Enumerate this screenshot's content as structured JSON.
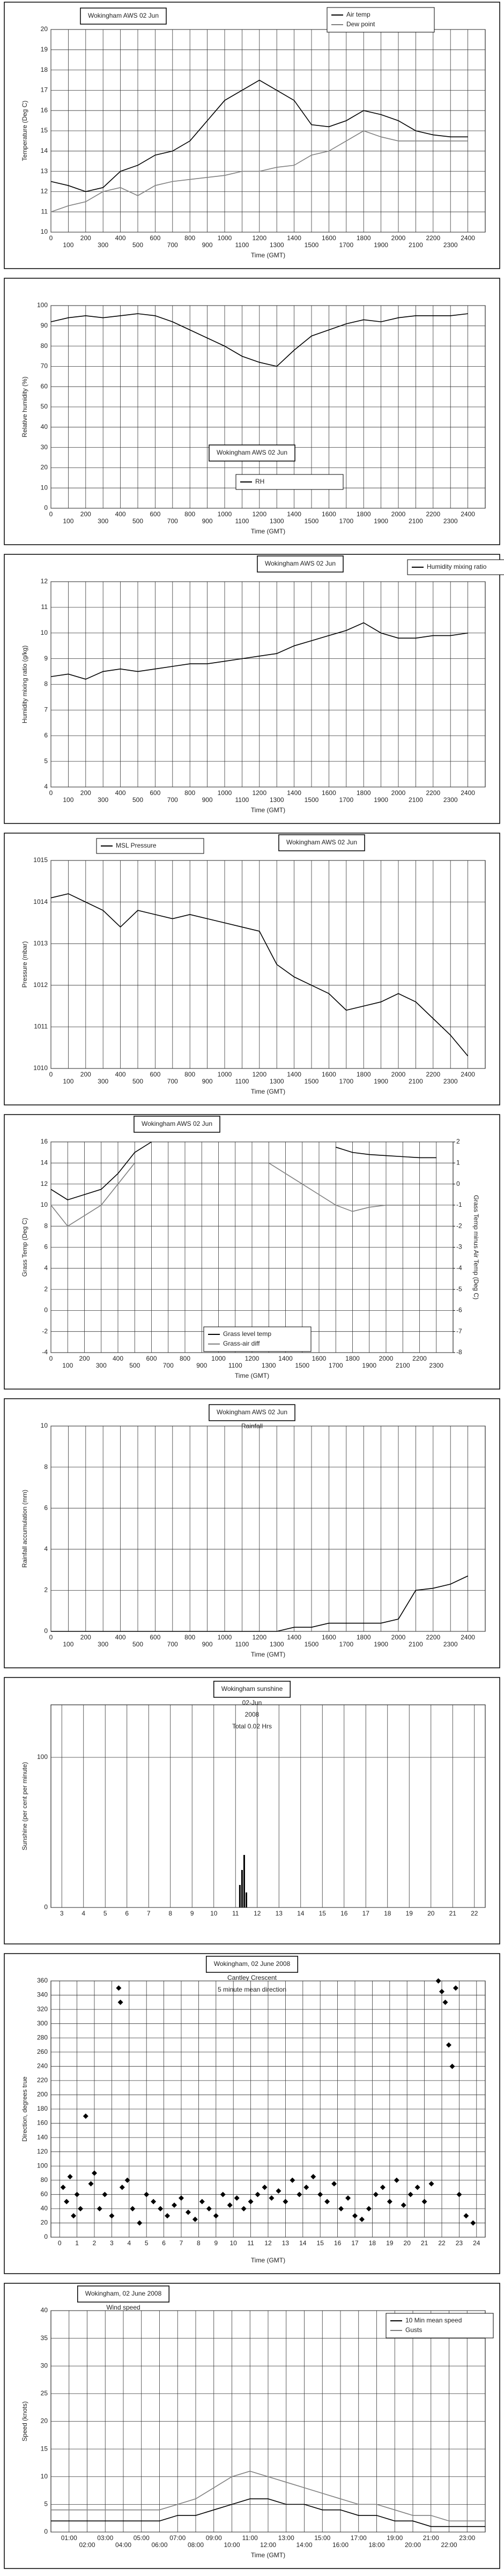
{
  "chart_data": [
    {
      "type": "line",
      "title": "Wokingham AWS 02 Jun",
      "xlabel": "Time (GMT)",
      "ylabel": "Temperature (Deg C)",
      "legend": "upper right",
      "grid": true,
      "x": [
        0,
        100,
        200,
        300,
        400,
        500,
        600,
        700,
        800,
        900,
        1000,
        1100,
        1200,
        1300,
        1400,
        1500,
        1600,
        1700,
        1800,
        1900,
        2000,
        2100,
        2200,
        2300,
        2400
      ],
      "series": [
        {
          "name": "Air temp",
          "color": "#000000",
          "values": [
            12.5,
            12.3,
            12,
            12.2,
            13,
            13.3,
            13.8,
            14,
            14.5,
            15.5,
            16.5,
            17,
            17.5,
            17,
            16.5,
            15.3,
            15.2,
            15.5,
            16,
            15.8,
            15.5,
            15,
            14.8,
            14.7,
            14.7
          ]
        },
        {
          "name": "Dew point",
          "color": "#808080",
          "values": [
            11,
            11.3,
            11.5,
            12,
            12.2,
            11.8,
            12.3,
            12.5,
            12.6,
            12.7,
            12.8,
            13,
            13,
            13.2,
            13.3,
            13.8,
            14,
            14.5,
            15,
            14.7,
            14.5,
            14.5,
            14.5,
            14.5,
            14.5
          ]
        }
      ],
      "xlim": [
        0,
        2500
      ],
      "xticks": [
        0,
        100,
        200,
        300,
        400,
        500,
        600,
        700,
        800,
        900,
        1000,
        1100,
        1200,
        1300,
        1400,
        1500,
        1600,
        1700,
        1800,
        1900,
        2000,
        2100,
        2200,
        2300,
        2400
      ],
      "ylim": [
        10,
        20
      ],
      "yticks": [
        10,
        11,
        12,
        13,
        14,
        15,
        16,
        17,
        18,
        19,
        20
      ]
    },
    {
      "type": "line",
      "title": "Wokingham AWS 02 Jun",
      "xlabel": "Time (GMT)",
      "ylabel": "Relative humidity (%)",
      "legend": "lower center",
      "grid": true,
      "x": [
        0,
        100,
        200,
        300,
        400,
        500,
        600,
        700,
        800,
        900,
        1000,
        1100,
        1200,
        1300,
        1400,
        1500,
        1600,
        1700,
        1800,
        1900,
        2000,
        2100,
        2200,
        2300,
        2400
      ],
      "series": [
        {
          "name": "RH",
          "color": "#000000",
          "values": [
            92,
            94,
            95,
            94,
            95,
            96,
            95,
            92,
            88,
            84,
            80,
            75,
            72,
            70,
            78,
            85,
            88,
            91,
            93,
            92,
            94,
            95,
            95,
            95,
            96
          ]
        }
      ],
      "xlim": [
        0,
        2500
      ],
      "xticks": [
        0,
        100,
        200,
        300,
        400,
        500,
        600,
        700,
        800,
        900,
        1000,
        1100,
        1200,
        1300,
        1400,
        1500,
        1600,
        1700,
        1800,
        1900,
        2000,
        2100,
        2200,
        2300,
        2400
      ],
      "ylim": [
        0,
        100
      ],
      "yticks": [
        0,
        10,
        20,
        30,
        40,
        50,
        60,
        70,
        80,
        90,
        100
      ]
    },
    {
      "type": "line",
      "title": "Wokingham AWS 02 Jun",
      "xlabel": "Time (GMT)",
      "ylabel": "Humidity mixing ratio (g/kg)",
      "legend": "upper right",
      "grid": true,
      "x": [
        0,
        100,
        200,
        300,
        400,
        500,
        600,
        700,
        800,
        900,
        1000,
        1100,
        1200,
        1300,
        1400,
        1500,
        1600,
        1700,
        1800,
        1900,
        2000,
        2100,
        2200,
        2300,
        2400
      ],
      "series": [
        {
          "name": "Humidity mixing ratio",
          "color": "#000000",
          "values": [
            8.3,
            8.4,
            8.2,
            8.5,
            8.6,
            8.5,
            8.6,
            8.7,
            8.8,
            8.8,
            8.9,
            9,
            9.1,
            9.2,
            9.5,
            9.7,
            9.9,
            10.1,
            10.4,
            10,
            9.8,
            9.8,
            9.9,
            9.9,
            10
          ]
        }
      ],
      "xlim": [
        0,
        2500
      ],
      "xticks": [
        0,
        100,
        200,
        300,
        400,
        500,
        600,
        700,
        800,
        900,
        1000,
        1100,
        1200,
        1300,
        1400,
        1500,
        1600,
        1700,
        1800,
        1900,
        2000,
        2100,
        2200,
        2300,
        2400
      ],
      "ylim": [
        4,
        12
      ],
      "yticks": [
        4,
        5,
        6,
        7,
        8,
        9,
        10,
        11,
        12
      ]
    },
    {
      "type": "line",
      "title": "Wokingham AWS 02 Jun",
      "xlabel": "Time (GMT)",
      "ylabel": "Pressure (mbar)",
      "legend": "upper left",
      "grid": true,
      "x": [
        0,
        100,
        200,
        300,
        400,
        500,
        600,
        700,
        800,
        900,
        1000,
        1100,
        1200,
        1300,
        1400,
        1500,
        1600,
        1700,
        1800,
        1900,
        2000,
        2100,
        2200,
        2300,
        2400
      ],
      "series": [
        {
          "name": "MSL Pressure",
          "color": "#000000",
          "values": [
            1014.1,
            1014.2,
            1014,
            1013.8,
            1013.4,
            1013.8,
            1013.7,
            1013.6,
            1013.7,
            1013.6,
            1013.5,
            1013.4,
            1013.3,
            1012.5,
            1012.2,
            1012,
            1011.8,
            1011.4,
            1011.5,
            1011.6,
            1011.8,
            1011.6,
            1011.2,
            1010.8,
            1010.3
          ]
        }
      ],
      "xlim": [
        0,
        2500
      ],
      "xticks": [
        0,
        100,
        200,
        300,
        400,
        500,
        600,
        700,
        800,
        900,
        1000,
        1100,
        1200,
        1300,
        1400,
        1500,
        1600,
        1700,
        1800,
        1900,
        2000,
        2100,
        2200,
        2300,
        2400
      ],
      "ylim": [
        1010,
        1015
      ],
      "yticks": [
        1010,
        1011,
        1012,
        1013,
        1014,
        1015
      ]
    },
    {
      "type": "line",
      "title": "Wokingham AWS 02 Jun",
      "xlabel": "Time (GMT)",
      "ylabel": "Grass Temp (Deg C)",
      "y2label": "Grass Temp minus Air Temp (Deg C)",
      "legend": "lower center",
      "grid": true,
      "x": [
        0,
        100,
        200,
        300,
        400,
        500,
        600,
        700,
        800,
        900,
        1000,
        1100,
        1200,
        1300,
        1400,
        1500,
        1600,
        1700,
        1800,
        1900,
        2000,
        2100,
        2200,
        2300
      ],
      "series": [
        {
          "name": "Grass level temp",
          "color": "#000000",
          "values": [
            11.5,
            10.5,
            11,
            11.5,
            13,
            15,
            16,
            null,
            null,
            null,
            null,
            null,
            null,
            null,
            null,
            null,
            null,
            15.5,
            15,
            14.8,
            14.7,
            14.6,
            14.5,
            14.5
          ]
        },
        {
          "name": "Grass-air diff",
          "color": "#808080",
          "axis": "y2",
          "values": [
            -1,
            -2,
            -1.5,
            -1,
            0,
            1,
            null,
            null,
            null,
            null,
            null,
            null,
            null,
            1,
            0.5,
            0,
            -0.5,
            -1,
            -1.3,
            -1.1,
            -1,
            -1,
            -1,
            -1
          ]
        }
      ],
      "xlim": [
        0,
        2400
      ],
      "xticks": [
        0,
        100,
        200,
        300,
        400,
        500,
        600,
        700,
        800,
        900,
        1000,
        1100,
        1200,
        1300,
        1400,
        1500,
        1600,
        1700,
        1800,
        1900,
        2000,
        2100,
        2200,
        2300
      ],
      "ylim": [
        -4,
        16
      ],
      "yticks": [
        -4,
        -2,
        0,
        2,
        4,
        6,
        8,
        10,
        12,
        14,
        16
      ],
      "y2lim": [
        -8,
        2
      ],
      "y2ticks": [
        -8,
        -7,
        -6,
        -5,
        -4,
        -3,
        -2,
        -1,
        0,
        1,
        2
      ]
    },
    {
      "type": "line",
      "title": "Wokingham AWS 02 Jun",
      "subtitles": [
        "Rainfall"
      ],
      "xlabel": "Time (GMT)",
      "ylabel": "Rainfall accumulation (mm)",
      "grid": true,
      "x": [
        0,
        100,
        200,
        300,
        400,
        500,
        600,
        700,
        800,
        900,
        1000,
        1100,
        1200,
        1300,
        1400,
        1500,
        1600,
        1700,
        1800,
        1900,
        2000,
        2100,
        2200,
        2300,
        2400
      ],
      "values": [
        0,
        0,
        0,
        0,
        0,
        0,
        0,
        0,
        0,
        0,
        0,
        0,
        0,
        0,
        0.2,
        0.2,
        0.4,
        0.4,
        0.4,
        0.4,
        0.6,
        2,
        2.1,
        2.3,
        2.7
      ],
      "color": "#000000",
      "xlim": [
        0,
        2500
      ],
      "xticks": [
        0,
        100,
        200,
        300,
        400,
        500,
        600,
        700,
        800,
        900,
        1000,
        1100,
        1200,
        1300,
        1400,
        1500,
        1600,
        1700,
        1800,
        1900,
        2000,
        2100,
        2200,
        2300,
        2400
      ],
      "ylim": [
        0,
        10
      ],
      "yticks": [
        0,
        2,
        4,
        6,
        8,
        10
      ]
    },
    {
      "type": "bar",
      "title": "Wokingham sunshine",
      "subtitles": [
        "02-Jun",
        "2008",
        "Total 0.02 Hrs"
      ],
      "ylabel": "Sunshine (per cent per minute)",
      "grid": true,
      "x": [
        11.2,
        11.3,
        11.4,
        11.5
      ],
      "values": [
        15,
        25,
        35,
        10
      ],
      "color": "#000000",
      "xlim": [
        2.5,
        22.5
      ],
      "xticks": [
        3,
        4,
        5,
        6,
        7,
        8,
        9,
        10,
        11,
        12,
        13,
        14,
        15,
        16,
        17,
        18,
        19,
        20,
        21,
        22
      ],
      "ylim": [
        0,
        135
      ],
      "yticks": [
        0,
        100
      ]
    },
    {
      "type": "scatter",
      "title": "Wokingham, 02 June 2008",
      "subtitles": [
        "Cantley Crescent",
        "5 minute mean direction"
      ],
      "xlabel": "Time (GMT)",
      "ylabel": "Direction, degrees true",
      "grid": true,
      "x": [
        0.2,
        0.4,
        0.6,
        0.8,
        1.0,
        1.2,
        1.5,
        1.8,
        2.0,
        2.3,
        2.6,
        3.0,
        3.4,
        3.5,
        3.6,
        3.9,
        4.2,
        4.6,
        5.0,
        5.4,
        5.8,
        6.2,
        6.6,
        7.0,
        7.4,
        7.8,
        8.2,
        8.6,
        9.0,
        9.4,
        9.8,
        10.2,
        10.6,
        11.0,
        11.4,
        11.8,
        12.2,
        12.6,
        13.0,
        13.4,
        13.8,
        14.2,
        14.6,
        15.0,
        15.4,
        15.8,
        16.2,
        16.6,
        17.0,
        17.4,
        17.8,
        18.2,
        18.6,
        19.0,
        19.4,
        19.8,
        20.2,
        20.6,
        21.0,
        21.4,
        21.8,
        22.0,
        22.2,
        22.4,
        22.6,
        22.8,
        23.0,
        23.4,
        23.8
      ],
      "values": [
        70,
        50,
        85,
        30,
        60,
        40,
        170,
        75,
        90,
        40,
        60,
        30,
        350,
        330,
        70,
        80,
        40,
        20,
        60,
        50,
        40,
        30,
        45,
        55,
        35,
        25,
        50,
        40,
        30,
        60,
        45,
        55,
        40,
        50,
        60,
        70,
        55,
        65,
        50,
        80,
        60,
        70,
        85,
        60,
        50,
        75,
        40,
        55,
        30,
        25,
        40,
        60,
        70,
        50,
        80,
        45,
        60,
        70,
        50,
        75,
        360,
        345,
        330,
        270,
        240,
        350,
        60,
        30,
        20
      ],
      "color": "#000000",
      "xlim": [
        -0.5,
        24.5
      ],
      "xticks": [
        0,
        1,
        2,
        3,
        4,
        5,
        6,
        7,
        8,
        9,
        10,
        11,
        12,
        13,
        14,
        15,
        16,
        17,
        18,
        19,
        20,
        21,
        22,
        23,
        24
      ],
      "ylim": [
        0,
        360
      ],
      "yticks": [
        0,
        20,
        40,
        60,
        80,
        100,
        120,
        140,
        160,
        180,
        200,
        220,
        240,
        260,
        280,
        300,
        320,
        340,
        360
      ]
    },
    {
      "type": "line",
      "title": "Wokingham, 02 June 2008",
      "subtitles": [
        "Wind speed"
      ],
      "xlabel": "Time (GMT)",
      "ylabel": "Speed (knots)",
      "legend": "upper right",
      "grid": true,
      "x": [
        0,
        1,
        2,
        3,
        4,
        5,
        6,
        7,
        8,
        9,
        10,
        11,
        12,
        13,
        14,
        15,
        16,
        17,
        18,
        19,
        20,
        21,
        22,
        23,
        24
      ],
      "series": [
        {
          "name": "10 Min mean speed",
          "color": "#000000",
          "values": [
            2,
            2,
            2,
            2,
            2,
            2,
            2,
            3,
            3,
            4,
            5,
            6,
            6,
            5,
            5,
            4,
            4,
            3,
            3,
            2,
            2,
            1,
            1,
            1,
            1
          ]
        },
        {
          "name": "Gusts",
          "color": "#808080",
          "values": [
            4,
            4,
            4,
            4,
            4,
            4,
            4,
            5,
            6,
            8,
            10,
            11,
            10,
            9,
            8,
            7,
            6,
            5,
            5,
            4,
            3,
            3,
            2,
            2,
            2
          ]
        }
      ],
      "xlim": [
        0,
        24
      ],
      "xticks": [
        {
          "value": 1,
          "label": "01:00"
        },
        {
          "value": 2,
          "label": "02:00"
        },
        {
          "value": 3,
          "label": "03:00"
        },
        {
          "value": 4,
          "label": "04:00"
        },
        {
          "value": 5,
          "label": "05:00"
        },
        {
          "value": 6,
          "label": "06:00"
        },
        {
          "value": 7,
          "label": "07:00"
        },
        {
          "value": 8,
          "label": "08:00"
        },
        {
          "value": 9,
          "label": "09:00"
        },
        {
          "value": 10,
          "label": "10:00"
        },
        {
          "value": 11,
          "label": "11:00"
        },
        {
          "value": 12,
          "label": "12:00"
        },
        {
          "value": 13,
          "label": "13:00"
        },
        {
          "value": 14,
          "label": "14:00"
        },
        {
          "value": 15,
          "label": "15:00"
        },
        {
          "value": 16,
          "label": "16:00"
        },
        {
          "value": 17,
          "label": "17:00"
        },
        {
          "value": 18,
          "label": "18:00"
        },
        {
          "value": 19,
          "label": "19:00"
        },
        {
          "value": 20,
          "label": "20:00"
        },
        {
          "value": 21,
          "label": "21:00"
        },
        {
          "value": 22,
          "label": "22:00"
        },
        {
          "value": 23,
          "label": "23:00"
        }
      ],
      "ylim": [
        0,
        40
      ],
      "yticks": [
        0,
        5,
        10,
        15,
        20,
        25,
        30,
        35,
        40
      ]
    }
  ]
}
